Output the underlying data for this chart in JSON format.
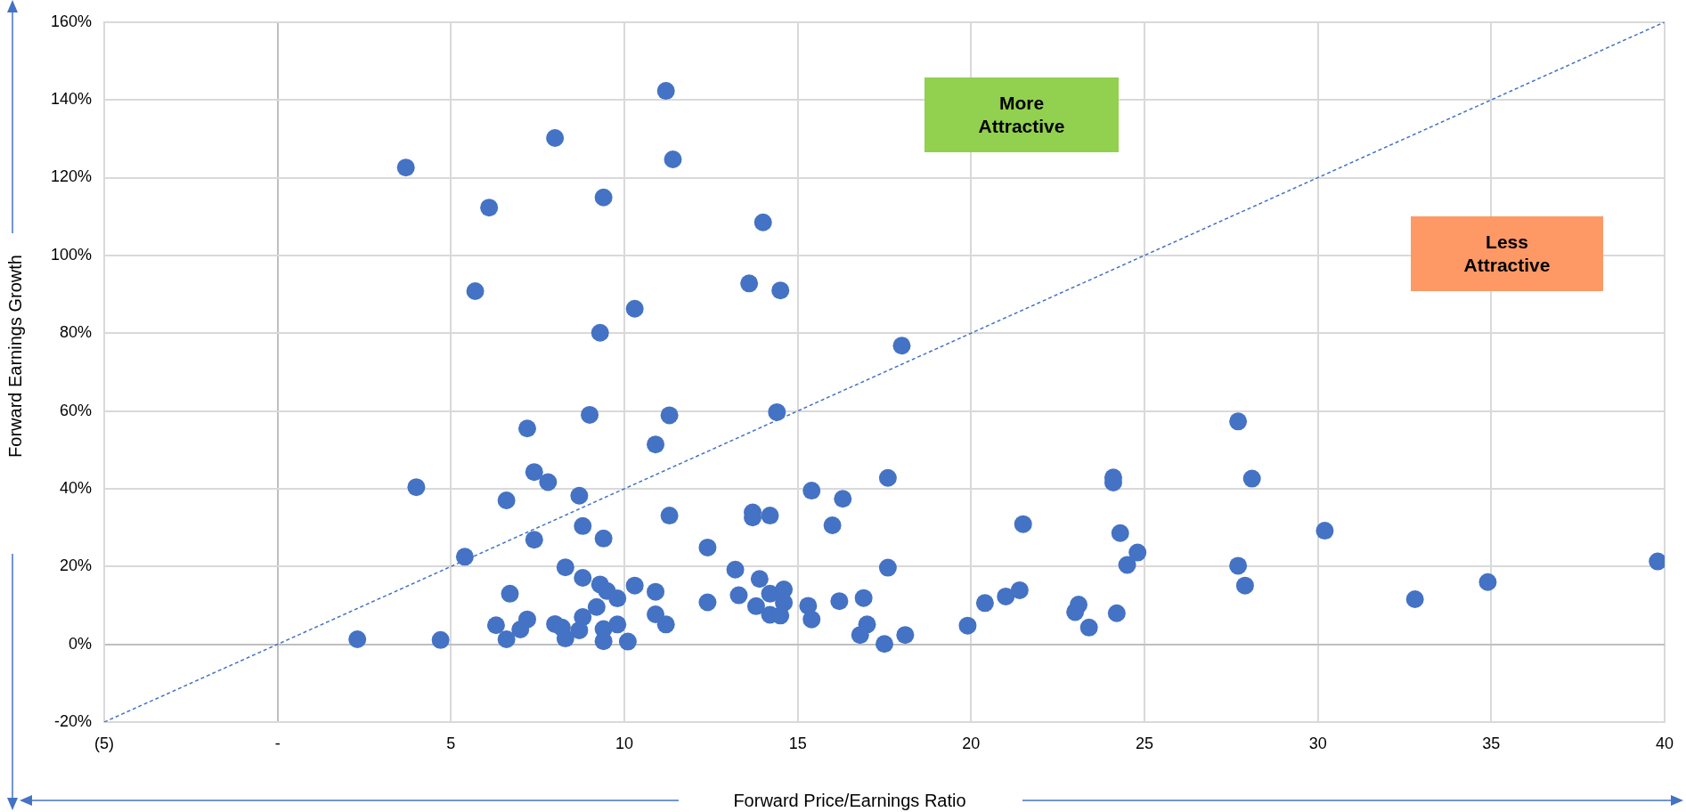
{
  "chart_data": {
    "type": "scatter",
    "xlabel": "Forward Price/Earnings Ratio",
    "ylabel": "Forward Earnings Growth",
    "xlim": [
      -5,
      40
    ],
    "xticks": [
      {
        "value": -5,
        "label": "(5)"
      },
      {
        "value": 0,
        "label": "-"
      },
      5,
      10,
      15,
      20,
      25,
      30,
      35,
      40
    ],
    "ylim": [
      -20,
      160
    ],
    "yticks": [
      {
        "value": -20,
        "label": "-20%"
      },
      {
        "value": 0,
        "label": "0%"
      },
      {
        "value": 20,
        "label": "20%"
      },
      {
        "value": 40,
        "label": "40%"
      },
      {
        "value": 60,
        "label": "60%"
      },
      {
        "value": 80,
        "label": "80%"
      },
      {
        "value": 100,
        "label": "100%"
      },
      {
        "value": 120,
        "label": "120%"
      },
      {
        "value": 140,
        "label": "140%"
      },
      {
        "value": 160,
        "label": "160%"
      }
    ],
    "grid": true,
    "legend": false,
    "marker": "circle",
    "annotations": [
      "More Attractive",
      "Less Attractive"
    ],
    "series": [
      {
        "type": "scatter",
        "color": "#4472c4",
        "x": [
          2.3,
          4.7,
          4.0,
          5.4,
          7.2,
          9.0,
          11.3,
          14.4,
          10.9,
          7.4,
          7.8,
          6.6,
          8.7,
          11.3,
          13.7,
          13.7,
          14.2,
          8.8,
          7.4,
          9.4,
          12.4,
          8.3,
          8.8,
          13.2,
          13.9,
          9.3,
          9.5,
          9.8,
          10.3,
          10.9,
          6.7,
          9.2,
          12.4,
          13.3,
          13.8,
          14.2,
          14.6,
          14.6,
          14.2,
          14.5,
          10.9,
          11.2,
          6.3,
          7.2,
          7.0,
          6.6,
          8.0,
          8.2,
          8.3,
          8.7,
          8.8,
          9.4,
          9.4,
          9.8,
          10.1,
          11.2,
          8.0,
          3.7,
          11.4,
          6.1,
          9.4,
          14.0,
          5.7,
          13.6,
          14.5,
          10.3,
          9.3,
          18.0,
          15.4,
          16.3,
          16.0,
          17.6,
          17.6,
          15.3,
          15.4,
          16.2,
          16.9,
          17.0,
          16.8,
          17.5,
          18.1,
          19.9,
          20.4,
          21.0,
          21.4,
          21.5,
          24.1,
          24.1,
          24.3,
          24.8,
          24.5,
          23.1,
          23.0,
          23.4,
          24.2,
          27.7,
          28.1,
          30.2,
          27.7,
          27.9,
          32.8,
          34.9,
          39.8
        ],
        "values": [
          1.3,
          1.1,
          40.4,
          22.5,
          55.5,
          59.0,
          58.9,
          59.7,
          51.4,
          44.3,
          41.7,
          37.0,
          38.2,
          33.1,
          33.9,
          32.6,
          33.1,
          30.4,
          26.9,
          27.2,
          24.9,
          19.8,
          17.1,
          19.2,
          16.8,
          15.4,
          13.7,
          11.8,
          15.1,
          13.5,
          13.0,
          9.6,
          10.8,
          12.6,
          9.8,
          13.0,
          14.1,
          10.7,
          7.6,
          7.4,
          7.7,
          5.1,
          4.9,
          6.4,
          3.8,
          1.3,
          5.2,
          4.3,
          1.5,
          3.6,
          7.0,
          3.9,
          0.8,
          5.1,
          0.7,
          142.3,
          130.2,
          122.6,
          124.7,
          112.3,
          114.9,
          108.5,
          90.8,
          92.8,
          91.0,
          86.3,
          80.1,
          76.8,
          39.5,
          37.4,
          30.6,
          42.8,
          19.7,
          9.9,
          6.4,
          11.1,
          11.9,
          5.1,
          2.4,
          0.1,
          2.4,
          4.8,
          10.6,
          12.3,
          13.9,
          30.9,
          42.9,
          41.6,
          28.6,
          23.6,
          20.4,
          10.2,
          8.3,
          4.3,
          8.0,
          57.3,
          42.6,
          29.2,
          20.2,
          15.1,
          11.6,
          16.0,
          21.3
        ]
      },
      {
        "type": "line",
        "color": "#4472c4",
        "marker": "none",
        "line_style": "dashed",
        "x": [
          -5,
          40
        ],
        "values": [
          -20,
          160
        ]
      }
    ]
  }
}
